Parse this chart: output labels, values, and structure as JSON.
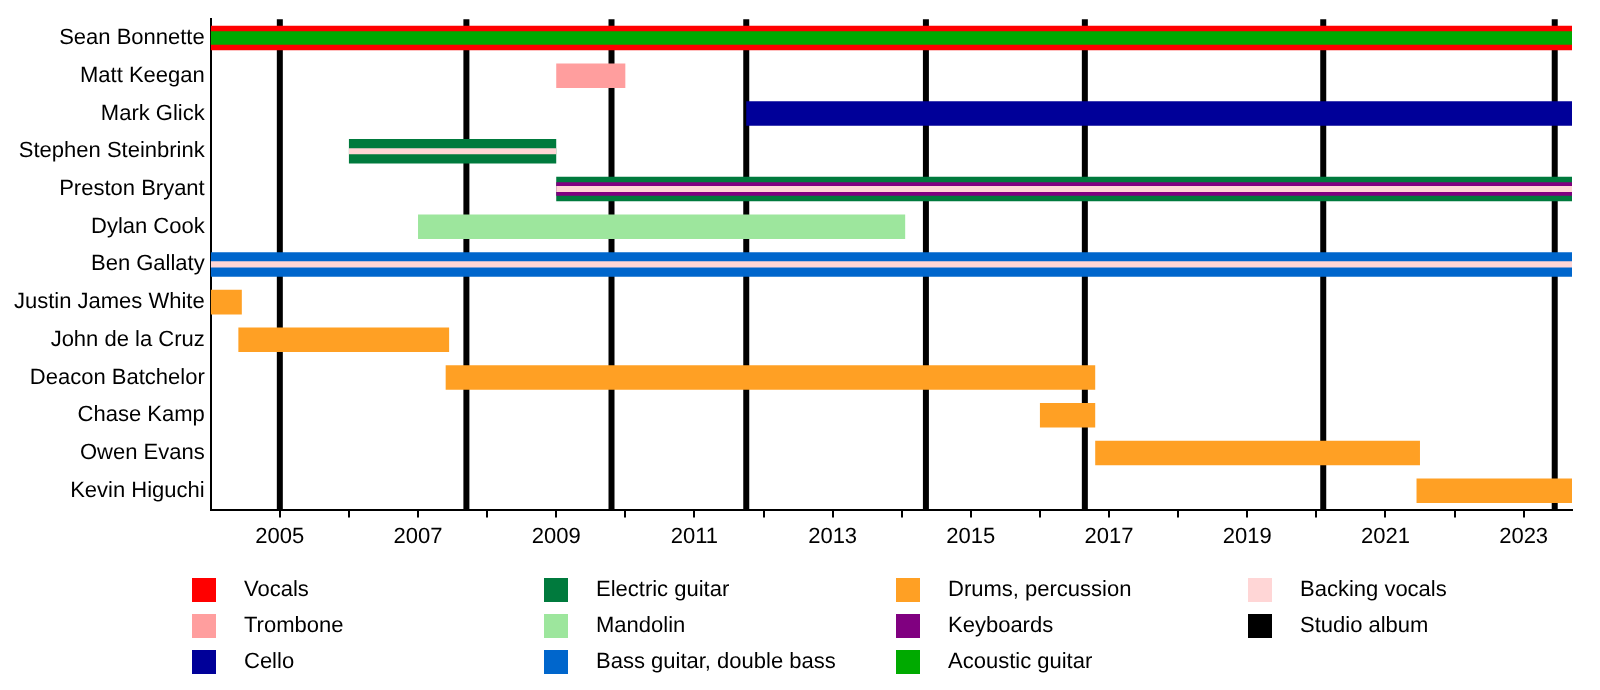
{
  "chart_data": {
    "type": "bar",
    "orientation": "horizontal",
    "legend": "bottom",
    "grid": false,
    "categories": [
      "Sean Bonnette",
      "Matt Keegan",
      "Mark Glick",
      "Stephen Steinbrink",
      "Preston Bryant",
      "Dylan Cook",
      "Ben Gallaty",
      "Justin James White",
      "John de la Cruz",
      "Deacon Batchelor",
      "Chase Kamp",
      "Owen Evans",
      "Kevin Higuchi"
    ],
    "xlim": [
      2004,
      2023.7
    ],
    "xticks": [
      2005,
      {
        "value": 2006,
        "label": null
      },
      2007,
      {
        "value": 2008,
        "label": null
      },
      2009,
      {
        "value": 2010,
        "label": null
      },
      2011,
      {
        "value": 2012,
        "label": null
      },
      2013,
      {
        "value": 2014,
        "label": null
      },
      2015,
      {
        "value": 2016,
        "label": null
      },
      2017,
      {
        "value": 2018,
        "label": null
      },
      2019,
      {
        "value": 2020,
        "label": null
      },
      2021,
      {
        "value": 2022,
        "label": null
      },
      2023
    ],
    "series": [
      {
        "name": "Vocals",
        "color": "#ff0000",
        "base": [
          2004,
          null,
          null,
          null,
          null,
          null,
          null,
          null,
          null,
          null,
          null,
          null,
          null
        ],
        "values": [
          19.7,
          null,
          null,
          null,
          null,
          null,
          null,
          null,
          null,
          null,
          null,
          null,
          null
        ]
      },
      {
        "name": "Trombone",
        "color": "#ff9e9e",
        "base": [
          null,
          2009,
          null,
          null,
          null,
          null,
          null,
          null,
          null,
          null,
          null,
          null,
          null
        ],
        "values": [
          null,
          1.0,
          null,
          null,
          null,
          null,
          null,
          null,
          null,
          null,
          null,
          null,
          null
        ]
      },
      {
        "name": "Cello",
        "color": "#000099",
        "base": [
          null,
          null,
          2011.75,
          null,
          null,
          null,
          null,
          null,
          null,
          null,
          null,
          null,
          null
        ],
        "values": [
          null,
          null,
          11.95,
          null,
          null,
          null,
          null,
          null,
          null,
          null,
          null,
          null,
          null
        ]
      },
      {
        "name": "Electric guitar",
        "color": "#007a3d",
        "base": [
          null,
          null,
          null,
          2006,
          2009,
          null,
          null,
          null,
          null,
          null,
          null,
          null,
          null
        ],
        "values": [
          null,
          null,
          null,
          3.0,
          14.7,
          null,
          null,
          null,
          null,
          null,
          null,
          null,
          null
        ]
      },
      {
        "name": "Mandolin",
        "color": "#9de69d",
        "base": [
          null,
          null,
          null,
          null,
          null,
          2007,
          null,
          null,
          null,
          null,
          null,
          null,
          null
        ],
        "values": [
          null,
          null,
          null,
          null,
          null,
          7.05,
          null,
          null,
          null,
          null,
          null,
          null,
          null
        ]
      },
      {
        "name": "Bass guitar, double bass",
        "color": "#0066cc",
        "base": [
          null,
          null,
          null,
          null,
          null,
          null,
          2004,
          null,
          null,
          null,
          null,
          null,
          null
        ],
        "values": [
          null,
          null,
          null,
          null,
          null,
          null,
          19.7,
          null,
          null,
          null,
          null,
          null,
          null
        ]
      },
      {
        "name": "Drums, percussion",
        "color": "#ffa024",
        "base": [
          null,
          null,
          null,
          null,
          null,
          null,
          null,
          2004,
          2004.4,
          2007.4,
          2016.0,
          2016.8,
          2021.45
        ],
        "values": [
          null,
          null,
          null,
          null,
          null,
          null,
          null,
          0.45,
          3.05,
          9.4,
          0.8,
          4.7,
          2.25
        ]
      },
      {
        "name": "Keyboards",
        "color": "#800080",
        "base": [
          null,
          null,
          null,
          null,
          2009,
          null,
          null,
          null,
          null,
          null,
          null,
          null,
          null
        ],
        "values": [
          null,
          null,
          null,
          null,
          14.7,
          null,
          null,
          null,
          null,
          null,
          null,
          null,
          null
        ]
      },
      {
        "name": "Acoustic guitar",
        "color": "#00aa00",
        "base": [
          2004,
          null,
          null,
          null,
          null,
          null,
          null,
          null,
          null,
          null,
          null,
          null,
          null
        ],
        "values": [
          19.7,
          null,
          null,
          null,
          null,
          null,
          null,
          null,
          null,
          null,
          null,
          null,
          null
        ]
      },
      {
        "name": "Backing vocals",
        "color": "#ffd6d6",
        "base": [
          null,
          null,
          null,
          2006,
          2009,
          null,
          2004,
          null,
          null,
          null,
          null,
          null,
          null
        ],
        "values": [
          null,
          null,
          null,
          3.0,
          14.7,
          null,
          19.7,
          null,
          null,
          null,
          null,
          null,
          null
        ]
      }
    ],
    "ref_lines": [
      {
        "axis": "x",
        "value": 2005.0,
        "label": "Studio album",
        "color": "#000000"
      },
      {
        "axis": "x",
        "value": 2007.7,
        "color": "#000000"
      },
      {
        "axis": "x",
        "value": 2009.8,
        "color": "#000000"
      },
      {
        "axis": "x",
        "value": 2011.75,
        "color": "#000000"
      },
      {
        "axis": "x",
        "value": 2014.35,
        "color": "#000000"
      },
      {
        "axis": "x",
        "value": 2016.65,
        "color": "#000000"
      },
      {
        "axis": "x",
        "value": 2020.1,
        "color": "#000000"
      },
      {
        "axis": "x",
        "value": 2023.45,
        "color": "#000000"
      }
    ]
  }
}
